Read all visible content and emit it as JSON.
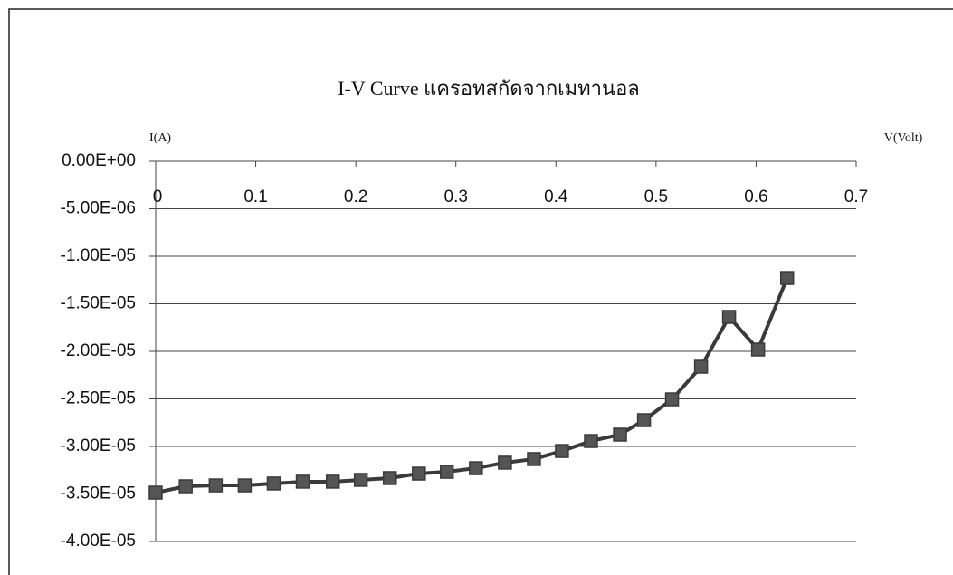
{
  "chart_data": {
    "type": "line",
    "title": "I-V Curve แครอทสกัดจากเมทานอล",
    "x_label": "V(Volt)",
    "y_label": "I(A)",
    "x": [
      0,
      0.03,
      0.06,
      0.089,
      0.118,
      0.147,
      0.177,
      0.205,
      0.234,
      0.263,
      0.291,
      0.32,
      0.349,
      0.378,
      0.406,
      0.435,
      0.464,
      0.488,
      0.516,
      0.545,
      0.573,
      0.602,
      0.631
    ],
    "series": [
      {
        "name": "I",
        "color": "#3a3a3a",
        "values": [
          -3.486e-05,
          -3.419e-05,
          -3.41e-05,
          -3.41e-05,
          -3.39e-05,
          -3.371e-05,
          -3.371e-05,
          -3.352e-05,
          -3.333e-05,
          -3.286e-05,
          -3.267e-05,
          -3.229e-05,
          -3.171e-05,
          -3.133e-05,
          -3.048e-05,
          -2.943e-05,
          -2.876e-05,
          -2.724e-05,
          -2.505e-05,
          -2.162e-05,
          -1.638e-05,
          -1.981e-05,
          -1.229e-05
        ]
      }
    ],
    "xlim": [
      0,
      0.7
    ],
    "xticks": [
      0,
      0.1,
      0.2,
      0.3,
      0.4,
      0.5,
      0.6,
      0.7
    ],
    "ylim": [
      -4e-05,
      0
    ],
    "yticks": [
      {
        "value": 0,
        "label": "0.00E+00"
      },
      {
        "value": -5e-06,
        "label": "-5.00E-06"
      },
      {
        "value": -1e-05,
        "label": "-1.00E-05"
      },
      {
        "value": -1.5e-05,
        "label": "-1.50E-05"
      },
      {
        "value": -2e-05,
        "label": "-2.00E-05"
      },
      {
        "value": -2.5e-05,
        "label": "-2.50E-05"
      },
      {
        "value": -3e-05,
        "label": "-3.00E-05"
      },
      {
        "value": -3.5e-05,
        "label": "-3.50E-05"
      },
      {
        "value": -4e-05,
        "label": "-4.00E-05"
      }
    ],
    "grid": true
  }
}
